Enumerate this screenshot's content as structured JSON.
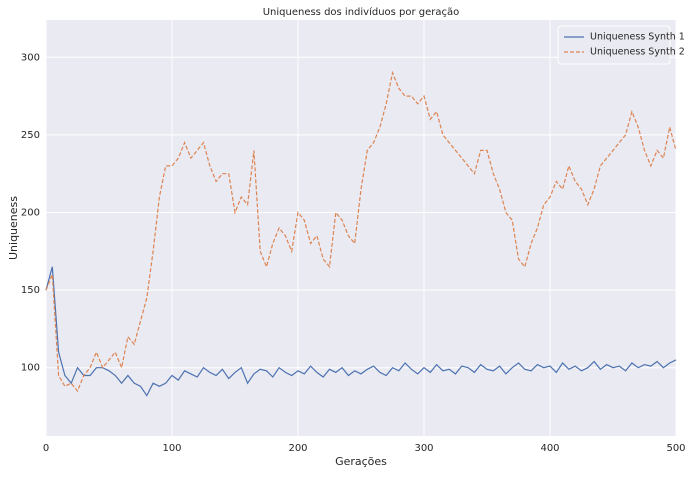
{
  "chart_data": {
    "type": "line",
    "title": "Uniqueness dos indivíduos por geração",
    "xlabel": "Gerações",
    "ylabel": "Uniqueness",
    "x": [
      0,
      5,
      10,
      15,
      20,
      25,
      30,
      35,
      40,
      45,
      50,
      55,
      60,
      65,
      70,
      75,
      80,
      85,
      90,
      95,
      100,
      105,
      110,
      115,
      120,
      125,
      130,
      135,
      140,
      145,
      150,
      155,
      160,
      165,
      170,
      175,
      180,
      185,
      190,
      195,
      200,
      205,
      210,
      215,
      220,
      225,
      230,
      235,
      240,
      245,
      250,
      255,
      260,
      265,
      270,
      275,
      280,
      285,
      290,
      295,
      300,
      305,
      310,
      315,
      320,
      325,
      330,
      335,
      340,
      345,
      350,
      355,
      360,
      365,
      370,
      375,
      380,
      385,
      390,
      395,
      400,
      405,
      410,
      415,
      420,
      425,
      430,
      435,
      440,
      445,
      450,
      455,
      460,
      465,
      470,
      475,
      480,
      485,
      490,
      495,
      500
    ],
    "series": [
      {
        "name": "Uniqueness Synth 1",
        "color": "#4c72b0",
        "dash": false,
        "values": [
          150,
          165,
          110,
          95,
          90,
          100,
          95,
          95,
          100,
          100,
          98,
          95,
          90,
          95,
          90,
          88,
          82,
          90,
          88,
          90,
          95,
          92,
          98,
          96,
          94,
          100,
          97,
          95,
          99,
          93,
          97,
          100,
          90,
          96,
          99,
          98,
          94,
          100,
          97,
          95,
          98,
          96,
          101,
          97,
          94,
          99,
          97,
          100,
          95,
          98,
          96,
          99,
          101,
          97,
          95,
          100,
          98,
          103,
          99,
          96,
          100,
          97,
          102,
          98,
          99,
          96,
          101,
          100,
          97,
          102,
          99,
          98,
          101,
          96,
          100,
          103,
          99,
          98,
          102,
          100,
          101,
          97,
          103,
          99,
          101,
          98,
          100,
          104,
          99,
          102,
          100,
          101,
          98,
          103,
          100,
          102,
          101,
          104,
          100,
          103,
          105
        ]
      },
      {
        "name": "Uniqueness Synth 2",
        "color": "#dd8452",
        "dash": true,
        "values": [
          150,
          160,
          95,
          88,
          90,
          85,
          95,
          100,
          110,
          100,
          105,
          110,
          100,
          120,
          115,
          130,
          145,
          175,
          210,
          230,
          230,
          235,
          245,
          235,
          240,
          245,
          230,
          220,
          225,
          225,
          200,
          210,
          205,
          240,
          175,
          165,
          180,
          190,
          185,
          175,
          200,
          195,
          180,
          185,
          170,
          165,
          200,
          195,
          185,
          180,
          215,
          240,
          245,
          255,
          270,
          290,
          280,
          275,
          275,
          270,
          275,
          260,
          265,
          250,
          245,
          240,
          235,
          230,
          225,
          240,
          240,
          225,
          215,
          200,
          195,
          170,
          165,
          180,
          190,
          205,
          210,
          220,
          215,
          230,
          220,
          215,
          205,
          215,
          230,
          235,
          240,
          245,
          250,
          265,
          255,
          240,
          230,
          240,
          235,
          255,
          240
        ]
      }
    ],
    "xlim": [
      0,
      500
    ],
    "ylim": [
      56,
      324
    ],
    "xticks": [
      0,
      100,
      200,
      300,
      400,
      500
    ],
    "yticks": [
      100,
      150,
      200,
      250,
      300
    ],
    "grid": true,
    "legend": "upper right"
  }
}
